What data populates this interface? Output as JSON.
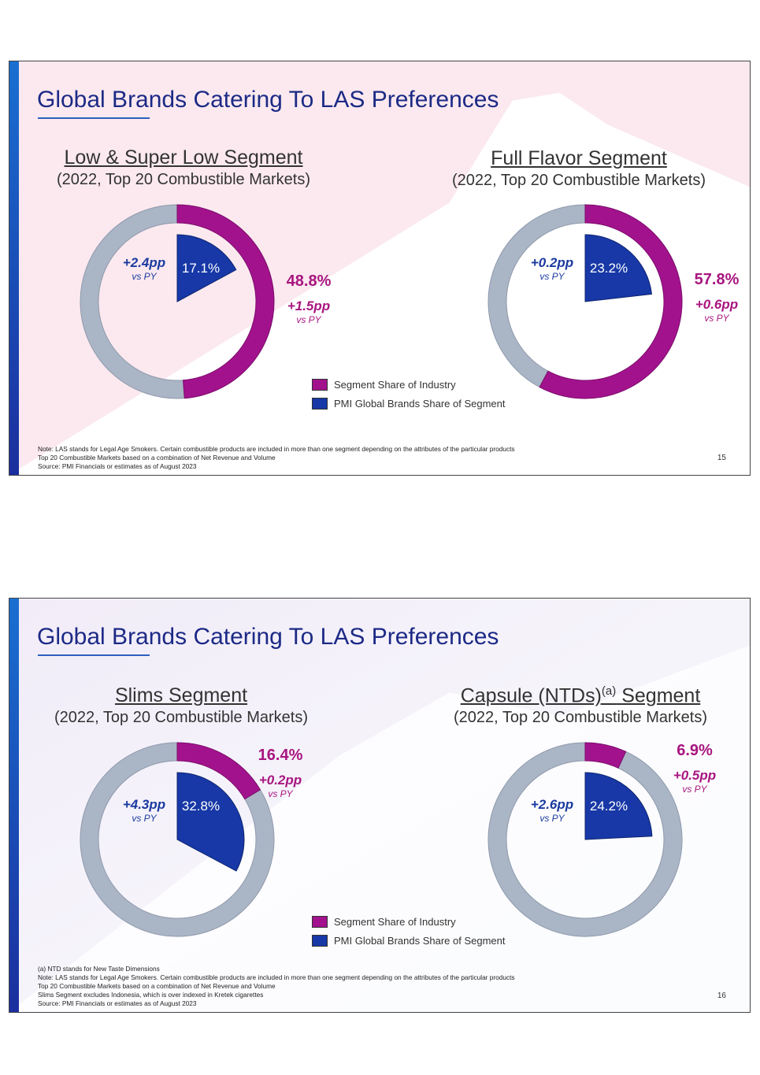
{
  "colors": {
    "segment_share": "#a3128d",
    "pmi_share": "#1738a6",
    "remainder_ring": "#aab5c6",
    "title": "#1c2a86",
    "magenta_text": "#a8157f",
    "blue_text": "#1a3aa0"
  },
  "slides": [
    {
      "title": "Global Brands Catering To LAS Preferences",
      "page_number": "15",
      "legend": {
        "segment_share": "Segment Share of Industry",
        "pmi_share": "PMI Global Brands Share of Segment"
      },
      "notes": [
        "Note: LAS stands for Legal Age Smokers. Certain combustible products are included in more than one segment depending on the attributes of the particular products",
        "Top 20 Combustible Markets based on a combination of Net Revenue and Volume",
        "Source: PMI Financials or estimates as of August 2023"
      ]
    },
    {
      "title": "Global Brands Catering To LAS Preferences",
      "page_number": "16",
      "legend": {
        "segment_share": "Segment Share of Industry",
        "pmi_share": "PMI Global Brands Share of Segment"
      },
      "notes": [
        "(a) NTD stands for New Taste Dimensions",
        "Note: LAS stands for Legal Age Smokers. Certain combustible products are included in more than one segment depending on the attributes of the particular products",
        "Top 20 Combustible Markets based on a combination of Net Revenue and Volume",
        "Slims Segment excludes Indonesia, which is over indexed in Kretek cigarettes",
        "Source: PMI Financials or estimates as of August 2023"
      ]
    }
  ],
  "chart_data": [
    {
      "type": "pie",
      "title": "Low & Super Low Segment",
      "subtitle": "(2022, Top 20 Combustible Markets)",
      "series": [
        {
          "name": "Segment Share of Industry",
          "value": 48.8,
          "label": "48.8%",
          "change": "+1.5pp",
          "change_note": "vs PY"
        },
        {
          "name": "PMI Global Brands Share of Segment",
          "value": 17.1,
          "label": "17.1%",
          "change": "+2.4pp",
          "change_note": "vs PY"
        }
      ]
    },
    {
      "type": "pie",
      "title": "Full Flavor Segment",
      "subtitle": "(2022, Top 20 Combustible Markets)",
      "series": [
        {
          "name": "Segment Share of Industry",
          "value": 57.8,
          "label": "57.8%",
          "change": "+0.6pp",
          "change_note": "vs PY"
        },
        {
          "name": "PMI Global Brands Share of Segment",
          "value": 23.2,
          "label": "23.2%",
          "change": "+0.2pp",
          "change_note": "vs PY"
        }
      ]
    },
    {
      "type": "pie",
      "title": "Slims Segment",
      "subtitle": "(2022, Top 20 Combustible Markets)",
      "series": [
        {
          "name": "Segment Share of Industry",
          "value": 16.4,
          "label": "16.4%",
          "change": "+0.2pp",
          "change_note": "vs PY"
        },
        {
          "name": "PMI Global Brands Share of Segment",
          "value": 32.8,
          "label": "32.8%",
          "change": "+4.3pp",
          "change_note": "vs PY"
        }
      ]
    },
    {
      "type": "pie",
      "title": "Capsule (NTDs)",
      "title_superscript": "(a)",
      "title_suffix": " Segment",
      "subtitle": "(2022, Top 20 Combustible Markets)",
      "series": [
        {
          "name": "Segment Share of Industry",
          "value": 6.9,
          "label": "6.9%",
          "change": "+0.5pp",
          "change_note": "vs PY"
        },
        {
          "name": "PMI Global Brands Share of Segment",
          "value": 24.2,
          "label": "24.2%",
          "change": "+2.6pp",
          "change_note": "vs PY"
        }
      ]
    }
  ]
}
